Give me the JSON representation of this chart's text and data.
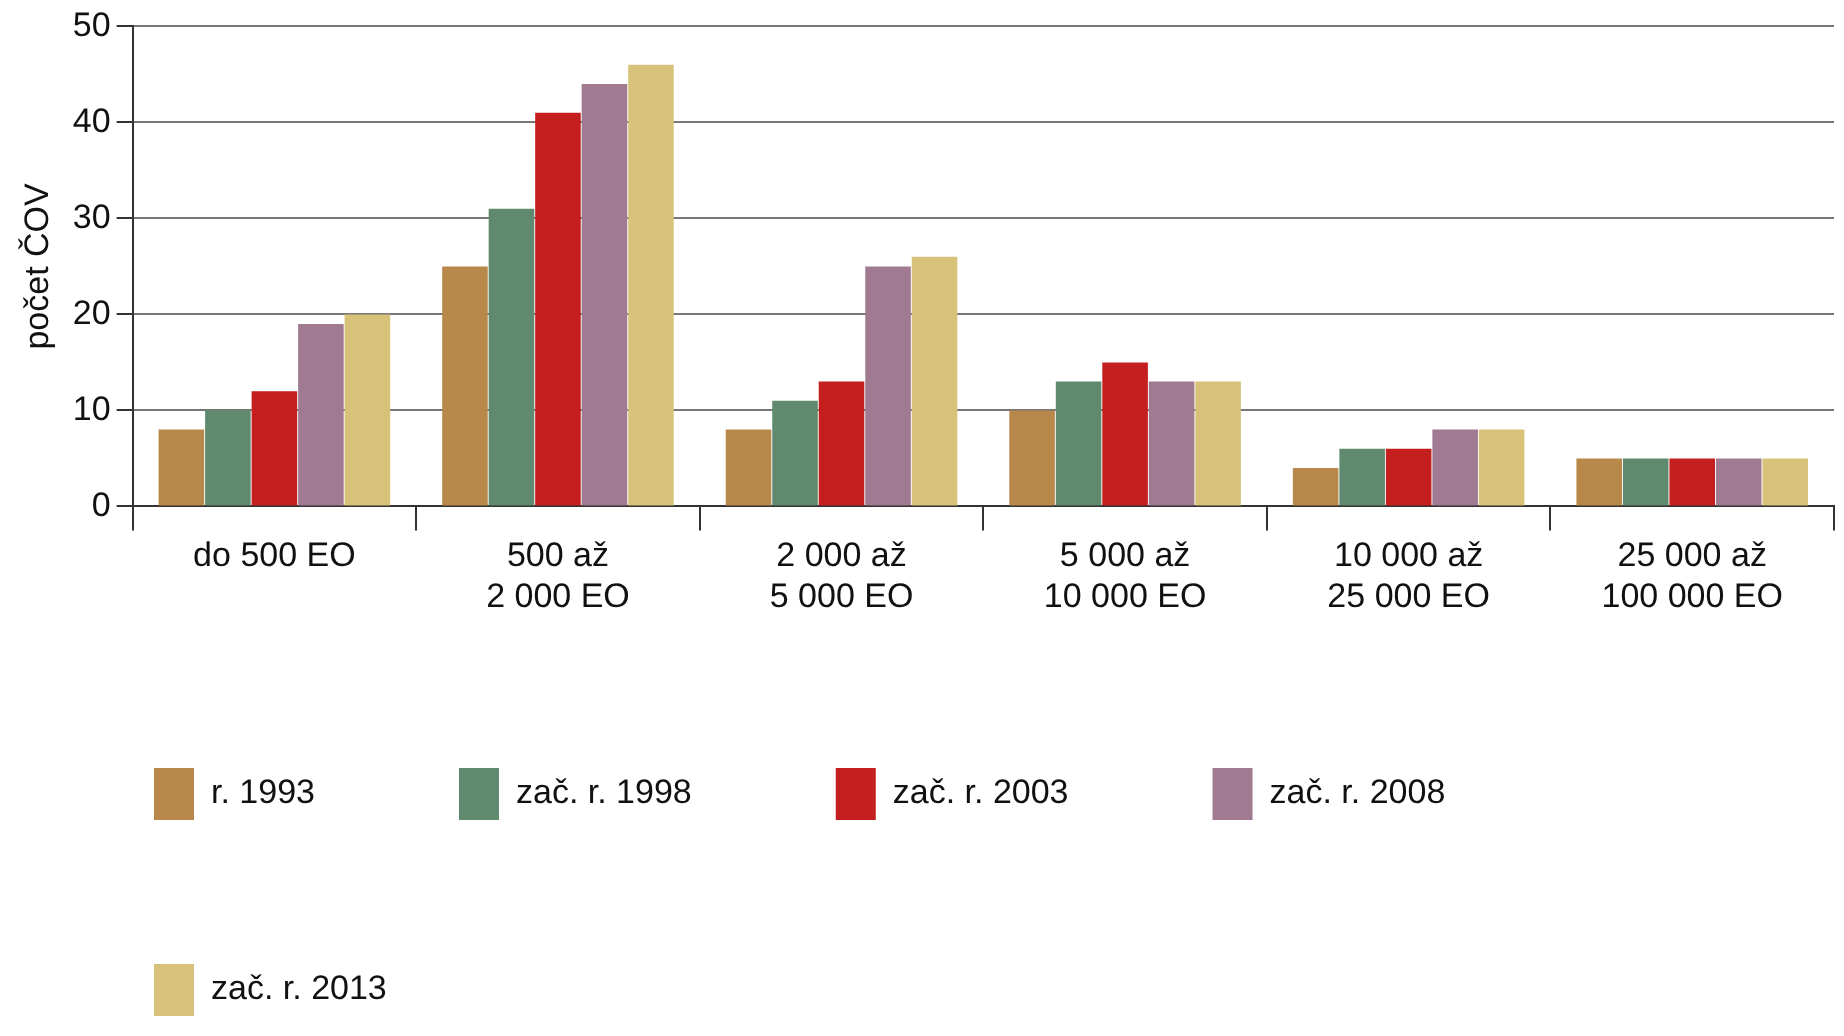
{
  "chart_data": {
    "type": "bar",
    "ylabel": "počet ČOV",
    "categories": [
      "do 500 EO",
      "500 až\n2 000 EO",
      "2 000 až\n5 000 EO",
      "5 000 až\n10 000 EO",
      "10 000 až\n25 000 EO",
      "25 000 až\n100 000 EO"
    ],
    "series": [
      {
        "name": "r. 1993",
        "color": "#b8884a",
        "values": [
          8,
          25,
          8,
          10,
          4,
          5
        ]
      },
      {
        "name": "zač. r. 1998",
        "color": "#5f8a6e",
        "values": [
          10,
          31,
          11,
          13,
          6,
          5
        ]
      },
      {
        "name": "zač. r. 2003",
        "color": "#c41e1e",
        "values": [
          12,
          41,
          13,
          15,
          6,
          5
        ]
      },
      {
        "name": "zač. r. 2008",
        "color": "#a07a90",
        "values": [
          19,
          44,
          25,
          13,
          8,
          5
        ]
      },
      {
        "name": "zač. r. 2013",
        "color": "#d8c27a",
        "values": [
          20,
          46,
          26,
          13,
          8,
          5
        ]
      }
    ],
    "ylim": [
      0,
      50
    ],
    "yticks": [
      0,
      10,
      20,
      30,
      40,
      50
    ],
    "grid": "y",
    "legend": "bottom"
  }
}
